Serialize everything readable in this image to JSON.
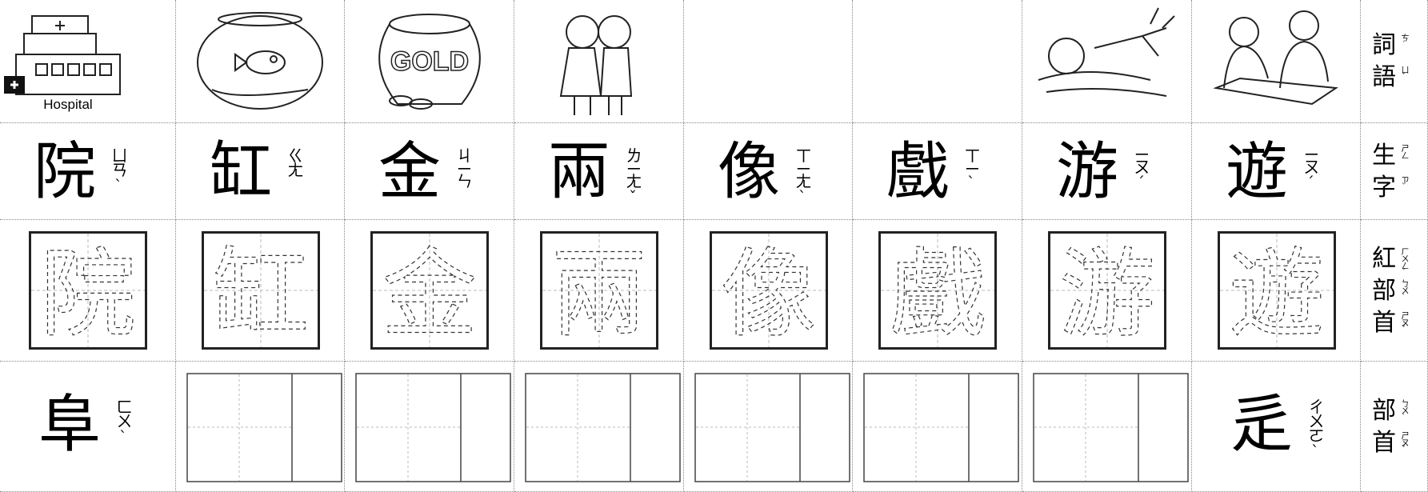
{
  "rows": {
    "words": {
      "label": [
        "詞",
        "語"
      ],
      "label_zhuyin": [
        "ㄘˊ",
        "ㄩˇ"
      ],
      "hospital_text": "Hospital",
      "gold_text": "GOLD"
    },
    "characters": {
      "label": [
        "生",
        "字"
      ],
      "label_zhuyin": [
        "ㄕㄥ",
        "ㄗˋ"
      ],
      "items": [
        {
          "char": "院",
          "zhuyin": "ㄩㄢˋ"
        },
        {
          "char": "缸",
          "zhuyin": "ㄍㄤ"
        },
        {
          "char": "金",
          "zhuyin": "ㄐㄧㄣ"
        },
        {
          "char": "兩",
          "zhuyin": "ㄌㄧㄤˇ"
        },
        {
          "char": "像",
          "zhuyin": "ㄒㄧㄤˋ"
        },
        {
          "char": "戲",
          "zhuyin": "ㄒㄧˋ"
        },
        {
          "char": "游",
          "zhuyin": "ㄧㄡˊ"
        },
        {
          "char": "遊",
          "zhuyin": "ㄧㄡˊ"
        }
      ]
    },
    "trace": {
      "label": [
        "紅",
        "部",
        "首"
      ],
      "label_zhuyin": [
        "ㄏㄨㄥˊ",
        "ㄅㄨˋ",
        "ㄕㄡˇ"
      ]
    },
    "radicals": {
      "label": [
        "部",
        "首"
      ],
      "label_zhuyin": [
        "ㄅㄨˋ",
        "ㄕㄡˇ"
      ],
      "first": {
        "char": "阜",
        "zhuyin": "ㄈㄨˋ"
      },
      "last": {
        "char": "辵",
        "zhuyin": "ㄔㄨㄛˋ"
      }
    }
  }
}
